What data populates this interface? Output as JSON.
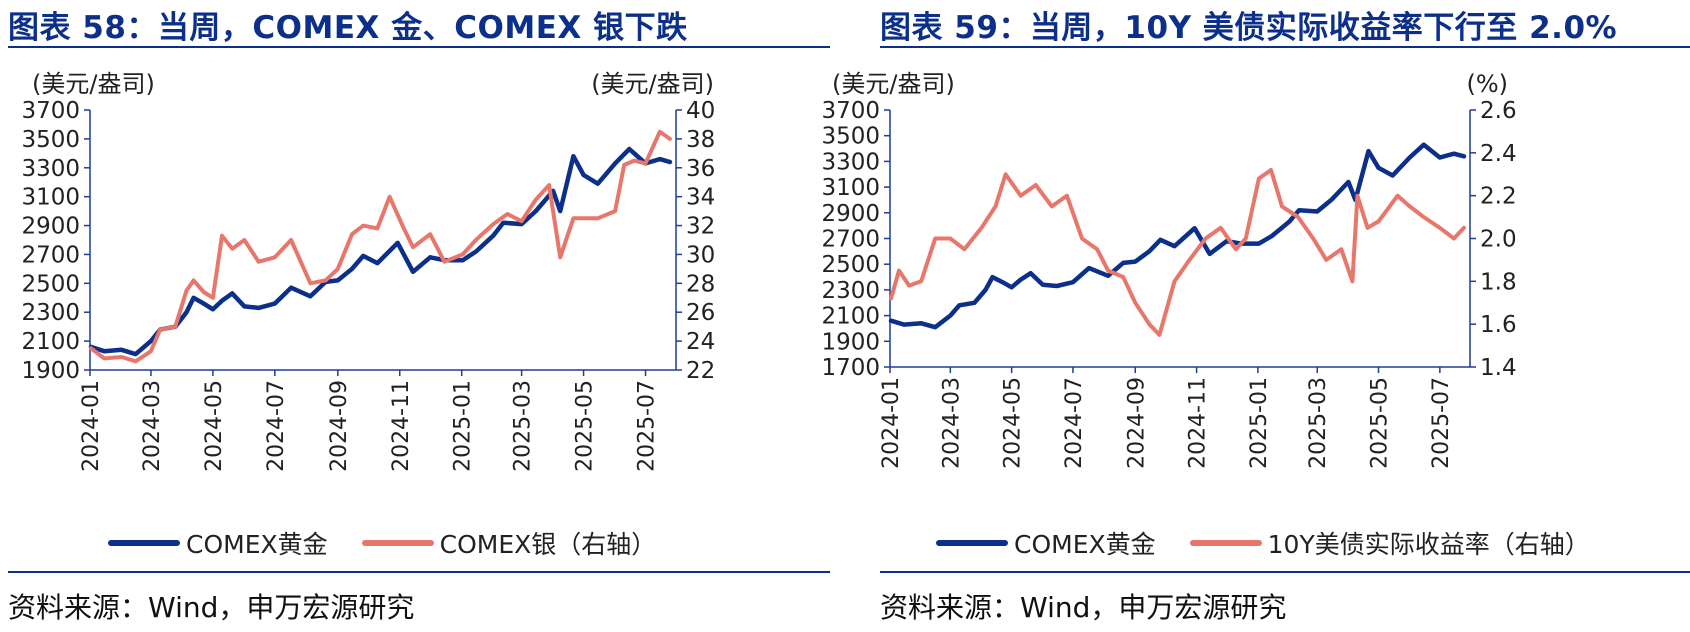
{
  "colors": {
    "navy": "#0b2f8a",
    "salmon": "#e8766a",
    "axis": "#1f3d99"
  },
  "left_panel": {
    "title": "图表 58：当周，COMEX 金、COMEX 银下跌",
    "source": "资料来源：Wind，申万宏源研究",
    "legend": [
      {
        "label": "COMEX黄金",
        "color": "#0b2f8a"
      },
      {
        "label": "COMEX银（右轴）",
        "color": "#e8766a"
      }
    ]
  },
  "right_panel": {
    "title": "图表 59：当周，10Y 美债实际收益率下行至 2.0%",
    "source": "资料来源：Wind，申万宏源研究",
    "legend": [
      {
        "label": "COMEX黄金",
        "color": "#0b2f8a"
      },
      {
        "label": "10Y美债实际收益率（右轴）",
        "color": "#e8766a"
      }
    ]
  },
  "chart_data": [
    {
      "type": "line",
      "x_ticks": [
        "2024-01",
        "2024-03",
        "2024-05",
        "2024-07",
        "2024-09",
        "2024-11",
        "2025-01",
        "2025-03",
        "2025-05",
        "2025-07"
      ],
      "x_range": [
        "2024-01-01",
        "2025-07-31"
      ],
      "ylabel": "(美元/盎司)",
      "y2label": "(美元/盎司)",
      "ylim": [
        1900,
        3700
      ],
      "y_ticks": [
        1900,
        2100,
        2300,
        2500,
        2700,
        2900,
        3100,
        3300,
        3500,
        3700
      ],
      "y2lim": [
        22,
        40
      ],
      "y2_ticks": [
        22,
        24,
        26,
        28,
        30,
        32,
        34,
        36,
        38,
        40
      ],
      "series": [
        {
          "name": "COMEX黄金",
          "axis": "left",
          "color": "#0b2f8a",
          "x": [
            "2024-01-02",
            "2024-01-15",
            "2024-02-01",
            "2024-02-15",
            "2024-03-01",
            "2024-03-10",
            "2024-03-25",
            "2024-04-05",
            "2024-04-12",
            "2024-04-22",
            "2024-05-01",
            "2024-05-10",
            "2024-05-20",
            "2024-06-01",
            "2024-06-15",
            "2024-07-01",
            "2024-07-17",
            "2024-08-05",
            "2024-08-20",
            "2024-09-01",
            "2024-09-15",
            "2024-09-26",
            "2024-10-10",
            "2024-10-30",
            "2024-11-14",
            "2024-12-01",
            "2024-12-15",
            "2025-01-02",
            "2025-01-15",
            "2025-02-01",
            "2025-02-11",
            "2025-03-01",
            "2025-03-15",
            "2025-04-01",
            "2025-04-08",
            "2025-04-21",
            "2025-05-01",
            "2025-05-15",
            "2025-06-01",
            "2025-06-15",
            "2025-07-01",
            "2025-07-15",
            "2025-07-25"
          ],
          "y": [
            2060,
            2030,
            2040,
            2010,
            2100,
            2180,
            2200,
            2300,
            2400,
            2360,
            2320,
            2380,
            2430,
            2340,
            2330,
            2360,
            2470,
            2410,
            2510,
            2520,
            2600,
            2690,
            2640,
            2780,
            2580,
            2680,
            2660,
            2660,
            2720,
            2830,
            2920,
            2910,
            3000,
            3140,
            3000,
            3380,
            3250,
            3190,
            3330,
            3430,
            3330,
            3360,
            3340
          ]
        },
        {
          "name": "COMEX银（右轴）",
          "axis": "right",
          "color": "#e8766a",
          "x": [
            "2024-01-02",
            "2024-01-15",
            "2024-02-01",
            "2024-02-15",
            "2024-03-01",
            "2024-03-10",
            "2024-03-25",
            "2024-04-05",
            "2024-04-12",
            "2024-04-22",
            "2024-05-01",
            "2024-05-10",
            "2024-05-20",
            "2024-06-01",
            "2024-06-15",
            "2024-07-01",
            "2024-07-17",
            "2024-08-05",
            "2024-08-20",
            "2024-09-01",
            "2024-09-15",
            "2024-09-26",
            "2024-10-10",
            "2024-10-22",
            "2024-11-05",
            "2024-11-14",
            "2024-12-01",
            "2024-12-15",
            "2025-01-02",
            "2025-01-15",
            "2025-02-01",
            "2025-02-15",
            "2025-03-01",
            "2025-03-15",
            "2025-03-28",
            "2025-04-08",
            "2025-04-21",
            "2025-05-01",
            "2025-05-15",
            "2025-06-01",
            "2025-06-10",
            "2025-06-20",
            "2025-07-01",
            "2025-07-15",
            "2025-07-25"
          ],
          "y": [
            23.5,
            22.8,
            22.9,
            22.6,
            23.3,
            24.8,
            25.0,
            27.5,
            28.2,
            27.4,
            27.0,
            31.3,
            30.4,
            31.0,
            29.5,
            29.8,
            31.0,
            28.0,
            28.2,
            29.0,
            31.4,
            32.0,
            31.8,
            34.0,
            31.8,
            30.5,
            31.4,
            29.5,
            30.0,
            31.0,
            32.1,
            32.8,
            32.3,
            33.8,
            34.8,
            29.8,
            32.5,
            32.5,
            32.5,
            33.0,
            36.2,
            36.5,
            36.3,
            38.5,
            38.0
          ]
        }
      ]
    },
    {
      "type": "line",
      "x_ticks": [
        "2024-01",
        "2024-03",
        "2024-05",
        "2024-07",
        "2024-09",
        "2024-11",
        "2025-01",
        "2025-03",
        "2025-05",
        "2025-07"
      ],
      "x_range": [
        "2024-01-01",
        "2025-07-31"
      ],
      "ylabel": "(美元/盎司)",
      "y2label": "(%)",
      "ylim": [
        1700,
        3700
      ],
      "y_ticks": [
        1700,
        1900,
        2100,
        2300,
        2500,
        2700,
        2900,
        3100,
        3300,
        3500,
        3700
      ],
      "y2lim": [
        1.4,
        2.6
      ],
      "y2_ticks": [
        "1.4",
        "1.6",
        "1.8",
        "2.0",
        "2.2",
        "2.4",
        "2.6"
      ],
      "series": [
        {
          "name": "COMEX黄金",
          "axis": "left",
          "color": "#0b2f8a",
          "x": [
            "2024-01-02",
            "2024-01-15",
            "2024-02-01",
            "2024-02-15",
            "2024-03-01",
            "2024-03-10",
            "2024-03-25",
            "2024-04-05",
            "2024-04-12",
            "2024-04-22",
            "2024-05-01",
            "2024-05-10",
            "2024-05-20",
            "2024-06-01",
            "2024-06-15",
            "2024-07-01",
            "2024-07-17",
            "2024-08-05",
            "2024-08-20",
            "2024-09-01",
            "2024-09-15",
            "2024-09-26",
            "2024-10-10",
            "2024-10-30",
            "2024-11-14",
            "2024-12-01",
            "2024-12-15",
            "2025-01-02",
            "2025-01-15",
            "2025-02-01",
            "2025-02-11",
            "2025-03-01",
            "2025-03-15",
            "2025-04-01",
            "2025-04-08",
            "2025-04-21",
            "2025-05-01",
            "2025-05-15",
            "2025-06-01",
            "2025-06-15",
            "2025-07-01",
            "2025-07-15",
            "2025-07-25"
          ],
          "y": [
            2060,
            2030,
            2040,
            2010,
            2100,
            2180,
            2200,
            2300,
            2400,
            2360,
            2320,
            2380,
            2430,
            2340,
            2330,
            2360,
            2470,
            2410,
            2510,
            2520,
            2600,
            2690,
            2640,
            2780,
            2580,
            2680,
            2660,
            2660,
            2720,
            2830,
            2920,
            2910,
            3000,
            3140,
            3000,
            3380,
            3250,
            3190,
            3330,
            3430,
            3330,
            3360,
            3340
          ]
        },
        {
          "name": "10Y美债实际收益率（右轴）",
          "axis": "right",
          "color": "#e8766a",
          "x": [
            "2024-01-02",
            "2024-01-10",
            "2024-01-20",
            "2024-02-01",
            "2024-02-15",
            "2024-03-01",
            "2024-03-15",
            "2024-04-01",
            "2024-04-15",
            "2024-04-25",
            "2024-05-10",
            "2024-05-25",
            "2024-06-10",
            "2024-06-25",
            "2024-07-10",
            "2024-07-25",
            "2024-08-05",
            "2024-08-20",
            "2024-09-01",
            "2024-09-15",
            "2024-09-25",
            "2024-10-10",
            "2024-10-25",
            "2024-11-10",
            "2024-11-25",
            "2024-12-10",
            "2024-12-20",
            "2025-01-02",
            "2025-01-14",
            "2025-01-25",
            "2025-02-10",
            "2025-02-25",
            "2025-03-10",
            "2025-03-25",
            "2025-04-05",
            "2025-04-10",
            "2025-04-20",
            "2025-05-01",
            "2025-05-20",
            "2025-06-01",
            "2025-06-15",
            "2025-07-01",
            "2025-07-15",
            "2025-07-25"
          ],
          "y": [
            1.72,
            1.85,
            1.78,
            1.8,
            2.0,
            2.0,
            1.95,
            2.05,
            2.15,
            2.3,
            2.2,
            2.25,
            2.15,
            2.2,
            2.0,
            1.95,
            1.85,
            1.82,
            1.7,
            1.6,
            1.55,
            1.8,
            1.9,
            2.0,
            2.05,
            1.95,
            2.0,
            2.28,
            2.32,
            2.15,
            2.1,
            2.0,
            1.9,
            1.95,
            1.8,
            2.2,
            2.05,
            2.08,
            2.2,
            2.15,
            2.1,
            2.05,
            2.0,
            2.05
          ]
        }
      ]
    }
  ]
}
